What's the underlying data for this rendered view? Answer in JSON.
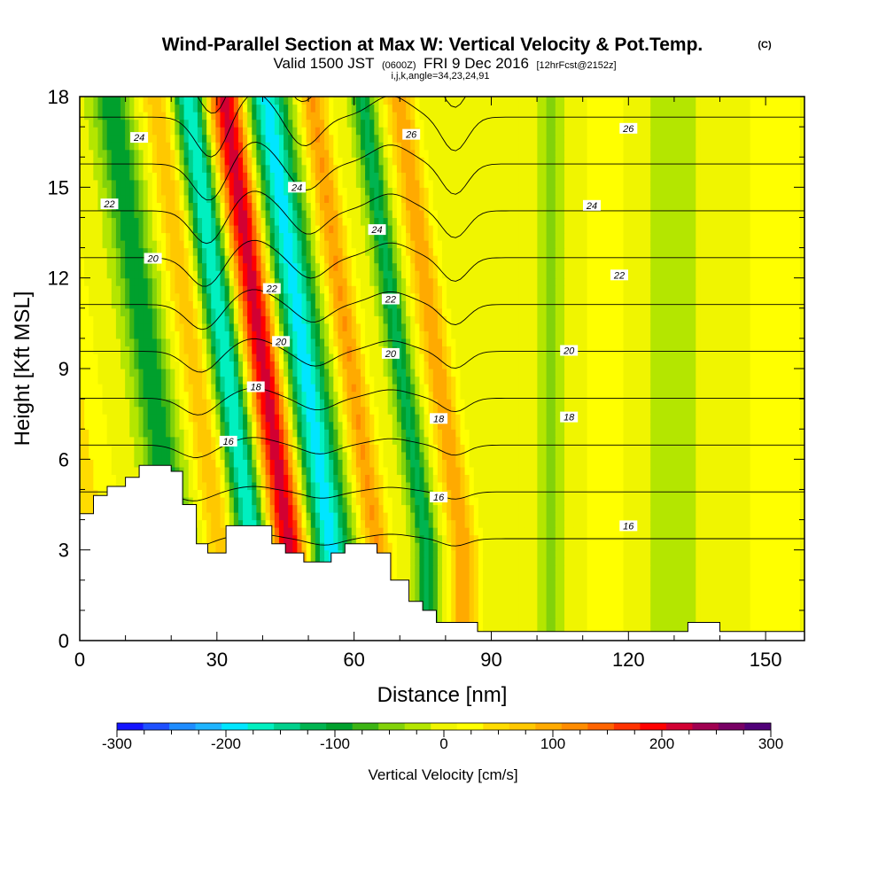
{
  "header": {
    "title": "Wind-Parallel Section at Max W: Vertical Velocity & Pot.Temp.",
    "copyright": "(C)",
    "valid_prefix": "Valid 1500 JST",
    "valid_utc": "(0600Z)",
    "valid_date": "FRI 9 Dec 2016",
    "forecast": "[12hrFcst@2152z]",
    "indices": "i,j,k,angle=34,23,24,91"
  },
  "chart_data": {
    "type": "heatmap",
    "xlabel": "Distance [nm]",
    "ylabel": "Height [Kft MSL]",
    "xlim": [
      0,
      158.5
    ],
    "ylim": [
      0,
      18
    ],
    "x_ticks": [
      0,
      30,
      60,
      90,
      120,
      150
    ],
    "y_ticks": [
      0,
      3,
      6,
      9,
      12,
      15,
      18
    ],
    "colorbar": {
      "label": "Vertical Velocity [cm/s]",
      "min": -300,
      "max": 300,
      "step": 25,
      "ticks": [
        -300,
        -200,
        -100,
        0,
        100,
        200,
        300
      ],
      "colors": [
        "#1414ff",
        "#1e50ff",
        "#1e8cff",
        "#1eb4ff",
        "#00e6ff",
        "#00f0c0",
        "#00d08c",
        "#00b450",
        "#00a02d",
        "#3cb414",
        "#82d20a",
        "#b4e600",
        "#f0f500",
        "#ffff00",
        "#ffdc00",
        "#ffc800",
        "#ffaa00",
        "#ff8c00",
        "#ff6400",
        "#ff3200",
        "#ff0000",
        "#d20032",
        "#a00050",
        "#780064",
        "#500078"
      ]
    },
    "velocity_bands": [
      {
        "x": 2,
        "w": 3,
        "a": 55
      },
      {
        "x": 7,
        "w": 3,
        "a": 30
      },
      {
        "x": 21,
        "w": 4,
        "a": -110
      },
      {
        "x": 31,
        "w": 3.5,
        "a": 80
      },
      {
        "x": 38,
        "w": 3.5,
        "a": -190
      },
      {
        "x": 46,
        "w": 4,
        "a": 230
      },
      {
        "x": 55,
        "w": 4.5,
        "a": -200
      },
      {
        "x": 65,
        "w": 3,
        "a": 115
      },
      {
        "x": 76,
        "w": 2.5,
        "a": -120
      },
      {
        "x": 84,
        "w": 3,
        "a": 110
      },
      {
        "x": 103,
        "w": 3,
        "a": -40
      },
      {
        "x": 130,
        "w": 5,
        "a": -35
      },
      {
        "x": 115,
        "w": 6,
        "a": 20
      },
      {
        "x": 152,
        "w": 8,
        "a": 20
      }
    ],
    "terrain": [
      [
        0,
        4.2
      ],
      [
        3,
        4.2
      ],
      [
        3,
        4.8
      ],
      [
        6,
        4.8
      ],
      [
        6,
        5.1
      ],
      [
        10,
        5.1
      ],
      [
        10,
        5.4
      ],
      [
        13,
        5.4
      ],
      [
        13,
        5.8
      ],
      [
        20,
        5.8
      ],
      [
        20,
        5.6
      ],
      [
        22.5,
        5.6
      ],
      [
        22.5,
        4.5
      ],
      [
        25.5,
        4.5
      ],
      [
        25.5,
        3.2
      ],
      [
        28,
        3.2
      ],
      [
        28,
        2.9
      ],
      [
        32,
        2.9
      ],
      [
        32,
        3.8
      ],
      [
        42,
        3.8
      ],
      [
        42,
        3.2
      ],
      [
        45,
        3.2
      ],
      [
        45,
        2.9
      ],
      [
        49,
        2.9
      ],
      [
        49,
        2.6
      ],
      [
        55,
        2.6
      ],
      [
        55,
        2.9
      ],
      [
        58,
        2.9
      ],
      [
        58,
        3.2
      ],
      [
        65,
        3.2
      ],
      [
        65,
        2.9
      ],
      [
        68,
        2.9
      ],
      [
        68,
        2.0
      ],
      [
        72,
        2.0
      ],
      [
        72,
        1.3
      ],
      [
        75,
        1.3
      ],
      [
        75,
        1.0
      ],
      [
        78,
        1.0
      ],
      [
        78,
        0.6
      ],
      [
        87,
        0.6
      ],
      [
        87,
        0.3
      ],
      [
        133,
        0.3
      ],
      [
        133,
        0.6
      ],
      [
        140,
        0.6
      ],
      [
        140,
        0.3
      ],
      [
        158.5,
        0.3
      ],
      [
        158.5,
        0
      ],
      [
        0,
        0
      ]
    ],
    "theta_contours": [
      15,
      16,
      17,
      18,
      19,
      20,
      21,
      22,
      23,
      24,
      25,
      26,
      27
    ],
    "contour_labels": [
      {
        "text": "24",
        "x": 13,
        "y": 16.65
      },
      {
        "text": "22",
        "x": 6.5,
        "y": 14.45
      },
      {
        "text": "20",
        "x": 16,
        "y": 12.65
      },
      {
        "text": "24",
        "x": 47.5,
        "y": 15.0
      },
      {
        "text": "22",
        "x": 42,
        "y": 11.65
      },
      {
        "text": "20",
        "x": 44,
        "y": 9.9
      },
      {
        "text": "18",
        "x": 38.5,
        "y": 8.4
      },
      {
        "text": "16",
        "x": 32.5,
        "y": 6.6
      },
      {
        "text": "26",
        "x": 72.5,
        "y": 16.75
      },
      {
        "text": "24",
        "x": 65,
        "y": 13.6
      },
      {
        "text": "22",
        "x": 68,
        "y": 11.3
      },
      {
        "text": "20",
        "x": 68,
        "y": 9.5
      },
      {
        "text": "18",
        "x": 78.5,
        "y": 7.35
      },
      {
        "text": "16",
        "x": 78.5,
        "y": 4.75
      },
      {
        "text": "26",
        "x": 120,
        "y": 16.95
      },
      {
        "text": "24",
        "x": 112,
        "y": 14.4
      },
      {
        "text": "22",
        "x": 118,
        "y": 12.1
      },
      {
        "text": "20",
        "x": 107,
        "y": 9.6
      },
      {
        "text": "18",
        "x": 107,
        "y": 7.4
      },
      {
        "text": "16",
        "x": 120,
        "y": 3.8
      }
    ]
  }
}
